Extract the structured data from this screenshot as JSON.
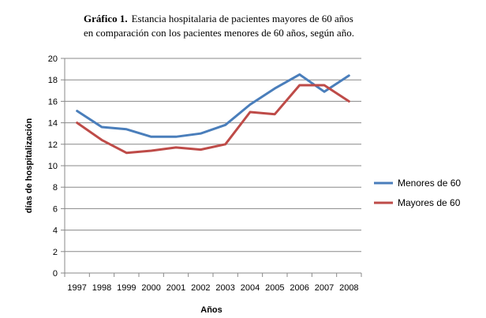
{
  "chart_data": {
    "type": "line",
    "title_prefix": "Gráfico 1.",
    "title_line1": "Estancia hospitalaria de pacientes mayores de 60 años",
    "title_line2": "en comparación con los pacientes menores de 60 años, según año.",
    "xlabel": "Años",
    "ylabel": "días de hospitalización",
    "categories": [
      "1997",
      "1998",
      "1999",
      "2000",
      "2001",
      "2002",
      "2003",
      "2004",
      "2005",
      "2006",
      "2007",
      "2008"
    ],
    "ylim": [
      0,
      20
    ],
    "yticks": [
      0,
      2,
      4,
      6,
      8,
      10,
      12,
      14,
      16,
      18,
      20
    ],
    "ytick_labels": [
      "0",
      "2",
      "4",
      "6",
      "8",
      "10",
      "12",
      "14",
      "16",
      "18",
      "20"
    ],
    "grid": true,
    "legend_position": "right",
    "series": [
      {
        "name": "Menores de 60",
        "color": "#4A7EBB",
        "values": [
          15.1,
          13.6,
          13.4,
          12.7,
          12.7,
          13.0,
          13.8,
          15.7,
          17.2,
          18.5,
          16.9,
          18.4
        ]
      },
      {
        "name": "Mayores de 60",
        "color": "#BE4B48",
        "values": [
          14.0,
          12.4,
          11.2,
          11.4,
          11.7,
          11.5,
          12.0,
          15.0,
          14.8,
          17.5,
          17.5,
          16.0
        ]
      }
    ]
  }
}
